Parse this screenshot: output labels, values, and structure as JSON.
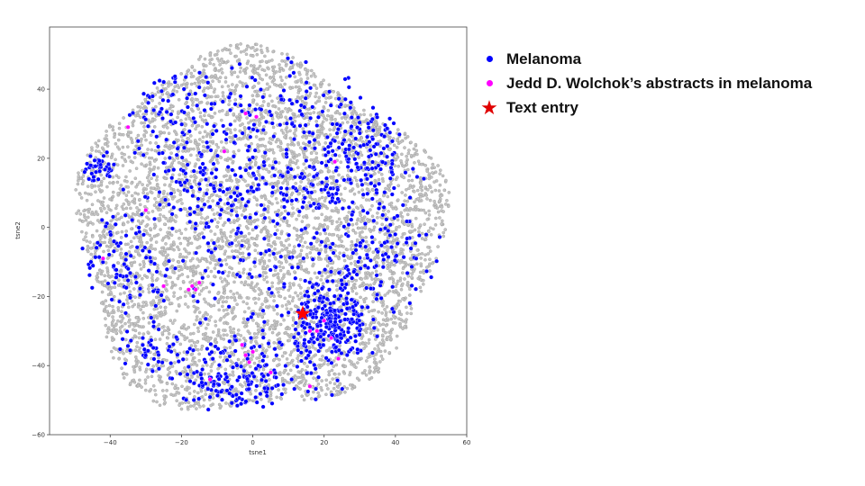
{
  "chart_data": {
    "type": "scatter",
    "title": "",
    "xlabel": "tsne1",
    "ylabel": "tsne2",
    "xlim": [
      -57,
      60
    ],
    "ylim": [
      -60,
      58
    ],
    "xticks": [
      -40,
      -20,
      0,
      20,
      40,
      60
    ],
    "yticks": [
      -60,
      -40,
      -20,
      0,
      20,
      40
    ],
    "xtick_labels": [
      "−40",
      "−20",
      "0",
      "20",
      "40",
      "60"
    ],
    "ytick_labels": [
      "−60",
      "−40",
      "−20",
      "0",
      "20",
      "40"
    ],
    "legend_position": "right, outside plot",
    "series": [
      {
        "name": "",
        "color": "#b4b4b4",
        "note_role": "all abstracts (background)",
        "blob": {
          "cx": 1,
          "cy": -2,
          "rx": 51,
          "ry": 52
        }
      },
      {
        "name": "Melanoma",
        "color": "#0000ff",
        "clusters": [
          {
            "cx": 22,
            "cy": -28,
            "sx": 5,
            "sy": 6,
            "n": 260
          },
          {
            "cx": 30,
            "cy": 20,
            "sx": 8,
            "sy": 9,
            "n": 180
          },
          {
            "cx": -5,
            "cy": -44,
            "sx": 10,
            "sy": 6,
            "n": 200
          },
          {
            "cx": -44,
            "cy": 17,
            "sx": 3,
            "sy": 2,
            "n": 45
          },
          {
            "cx": 10,
            "cy": 12,
            "sx": 10,
            "sy": 7,
            "n": 120
          },
          {
            "cx": -15,
            "cy": 12,
            "sx": 8,
            "sy": 8,
            "n": 110
          },
          {
            "cx": 35,
            "cy": -10,
            "sx": 8,
            "sy": 6,
            "n": 110
          },
          {
            "cx": -35,
            "cy": -10,
            "sx": 8,
            "sy": 7,
            "n": 90
          },
          {
            "cx": -20,
            "cy": 35,
            "sx": 8,
            "sy": 6,
            "n": 80
          },
          {
            "cx": 10,
            "cy": 35,
            "sx": 10,
            "sy": 7,
            "n": 80
          },
          {
            "cx": -28,
            "cy": -35,
            "sx": 5,
            "sy": 4,
            "n": 40
          },
          {
            "cx": 0,
            "cy": -10,
            "sx": 12,
            "sy": 10,
            "n": 90
          }
        ]
      },
      {
        "name": "Jedd D. Wolchok’s abstracts in melanoma",
        "color": "#ff00ff",
        "points": [
          [
            -17,
            -17
          ],
          [
            -18,
            -18
          ],
          [
            -16,
            -18
          ],
          [
            -15,
            -16
          ],
          [
            -2,
            -37
          ],
          [
            0,
            -36
          ],
          [
            -1,
            -39
          ],
          [
            -3,
            -34
          ],
          [
            18,
            -30
          ],
          [
            20,
            -27
          ],
          [
            22,
            -32
          ],
          [
            16,
            -30
          ],
          [
            -12,
            -44
          ],
          [
            16,
            -46
          ],
          [
            -2,
            33
          ],
          [
            1,
            32
          ],
          [
            23,
            19
          ],
          [
            -30,
            5
          ],
          [
            -42,
            -9
          ],
          [
            -25,
            -17
          ],
          [
            5,
            -42
          ],
          [
            24,
            -38
          ],
          [
            -35,
            29
          ],
          [
            -8,
            22
          ]
        ]
      },
      {
        "name": "Text entry",
        "color": "#ff0000",
        "marker": "star",
        "points": [
          [
            14,
            -25
          ]
        ]
      }
    ]
  },
  "legend": {
    "items": [
      {
        "label": "Melanoma",
        "color": "#0000ff",
        "marker": "dot"
      },
      {
        "label": "Jedd D. Wolchok’s abstracts in melanoma",
        "color": "#ff00ff",
        "marker": "dot"
      },
      {
        "label": "Text entry",
        "color": "#e00000",
        "marker": "star",
        "glyph": "★"
      }
    ]
  }
}
